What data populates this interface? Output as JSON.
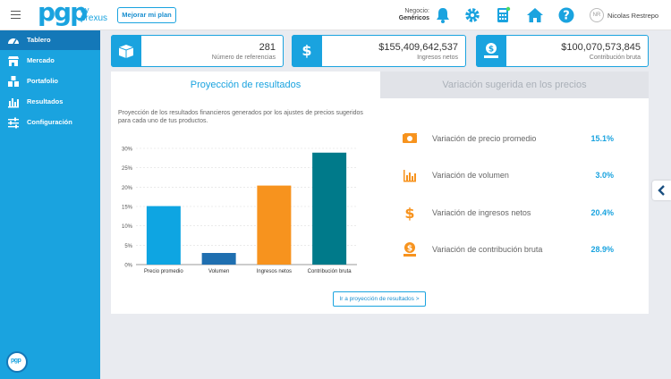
{
  "header": {
    "logo_main": "pgp",
    "logo_by": "by",
    "logo_sub": "prexus",
    "plan_button": "Mejorar mi plan",
    "negocio_label": "Negocio:",
    "negocio_value": "Genéricos",
    "avatar_initials": "NR",
    "user_name": "Nicolas Restrepo",
    "icons": [
      "bell-icon",
      "gear-icon",
      "calculator-icon",
      "home-icon",
      "help-icon"
    ]
  },
  "sidebar": {
    "items": [
      {
        "label": "Tablero",
        "icon": "dashboard-icon",
        "active": true
      },
      {
        "label": "Mercado",
        "icon": "market-icon",
        "active": false
      },
      {
        "label": "Portafolio",
        "icon": "portfolio-icon",
        "active": false
      },
      {
        "label": "Resultados",
        "icon": "results-icon",
        "active": false
      },
      {
        "label": "Configuración",
        "icon": "sliders-icon",
        "active": false
      }
    ],
    "chat_label": "pgp"
  },
  "stats": [
    {
      "value": "281",
      "label": "Número de referencias",
      "icon": "box-icon"
    },
    {
      "value": "$155,409,642,537",
      "label": "Ingresos netos",
      "icon": "dollar-icon"
    },
    {
      "value": "$100,070,573,845",
      "label": "Contribución bruta",
      "icon": "money-hand-icon"
    }
  ],
  "tabs": {
    "active": "Proyección de resultados",
    "inactive": "Variación sugerida en los precios"
  },
  "panel": {
    "description": "Proyección de los resultados financieros generados por los ajustes de precios sugeridos para cada uno de tus productos.",
    "link": "Ir a proyección de resultados >"
  },
  "chart_data": {
    "type": "bar",
    "categories": [
      "Precio promedio",
      "Volumen",
      "Ingresos netos",
      "Contribución bruta"
    ],
    "values": [
      15.1,
      3.0,
      20.4,
      28.9
    ],
    "colors": [
      "#0ea5e2",
      "#1f6fb0",
      "#f7931e",
      "#007a8a"
    ],
    "yticks": [
      "0%",
      "5%",
      "10%",
      "15%",
      "20%",
      "25%",
      "30%"
    ],
    "ylim": [
      0,
      30
    ]
  },
  "variations": [
    {
      "label": "Variación de precio promedio",
      "value": "15.1%",
      "icon": "cash-icon"
    },
    {
      "label": "Variación de volumen",
      "value": "3.0%",
      "icon": "bar-chart-icon"
    },
    {
      "label": "Variación de ingresos netos",
      "value": "20.4%",
      "icon": "dollar-icon"
    },
    {
      "label": "Variación de contribución bruta",
      "value": "28.9%",
      "icon": "money-hand-icon"
    }
  ]
}
